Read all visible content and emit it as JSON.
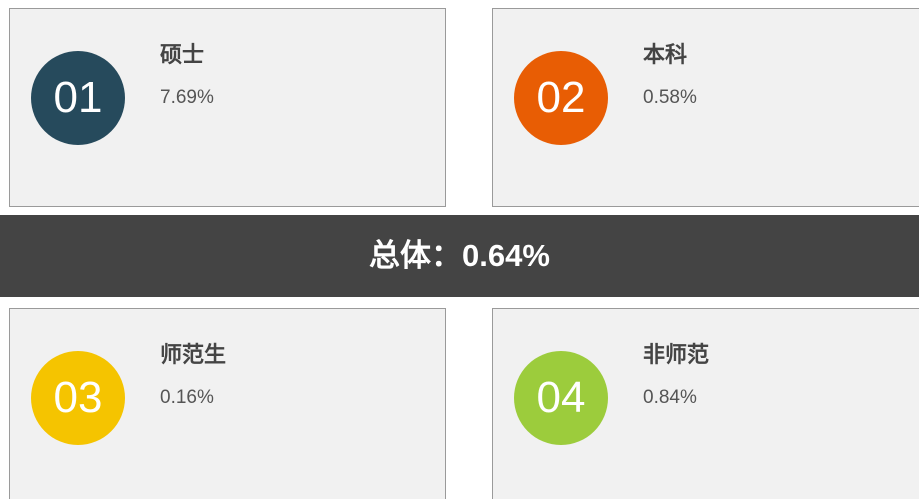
{
  "cards": [
    {
      "number": "01",
      "title": "硕士",
      "value": "7.69%",
      "color": "#264a5c"
    },
    {
      "number": "02",
      "title": "本科",
      "value": "0.58%",
      "color": "#e85d04"
    },
    {
      "number": "03",
      "title": "师范生",
      "value": "0.16%",
      "color": "#f5c400"
    },
    {
      "number": "04",
      "title": "非师范",
      "value": "0.84%",
      "color": "#9ccc3c"
    }
  ],
  "summary": "总体：0.64%"
}
